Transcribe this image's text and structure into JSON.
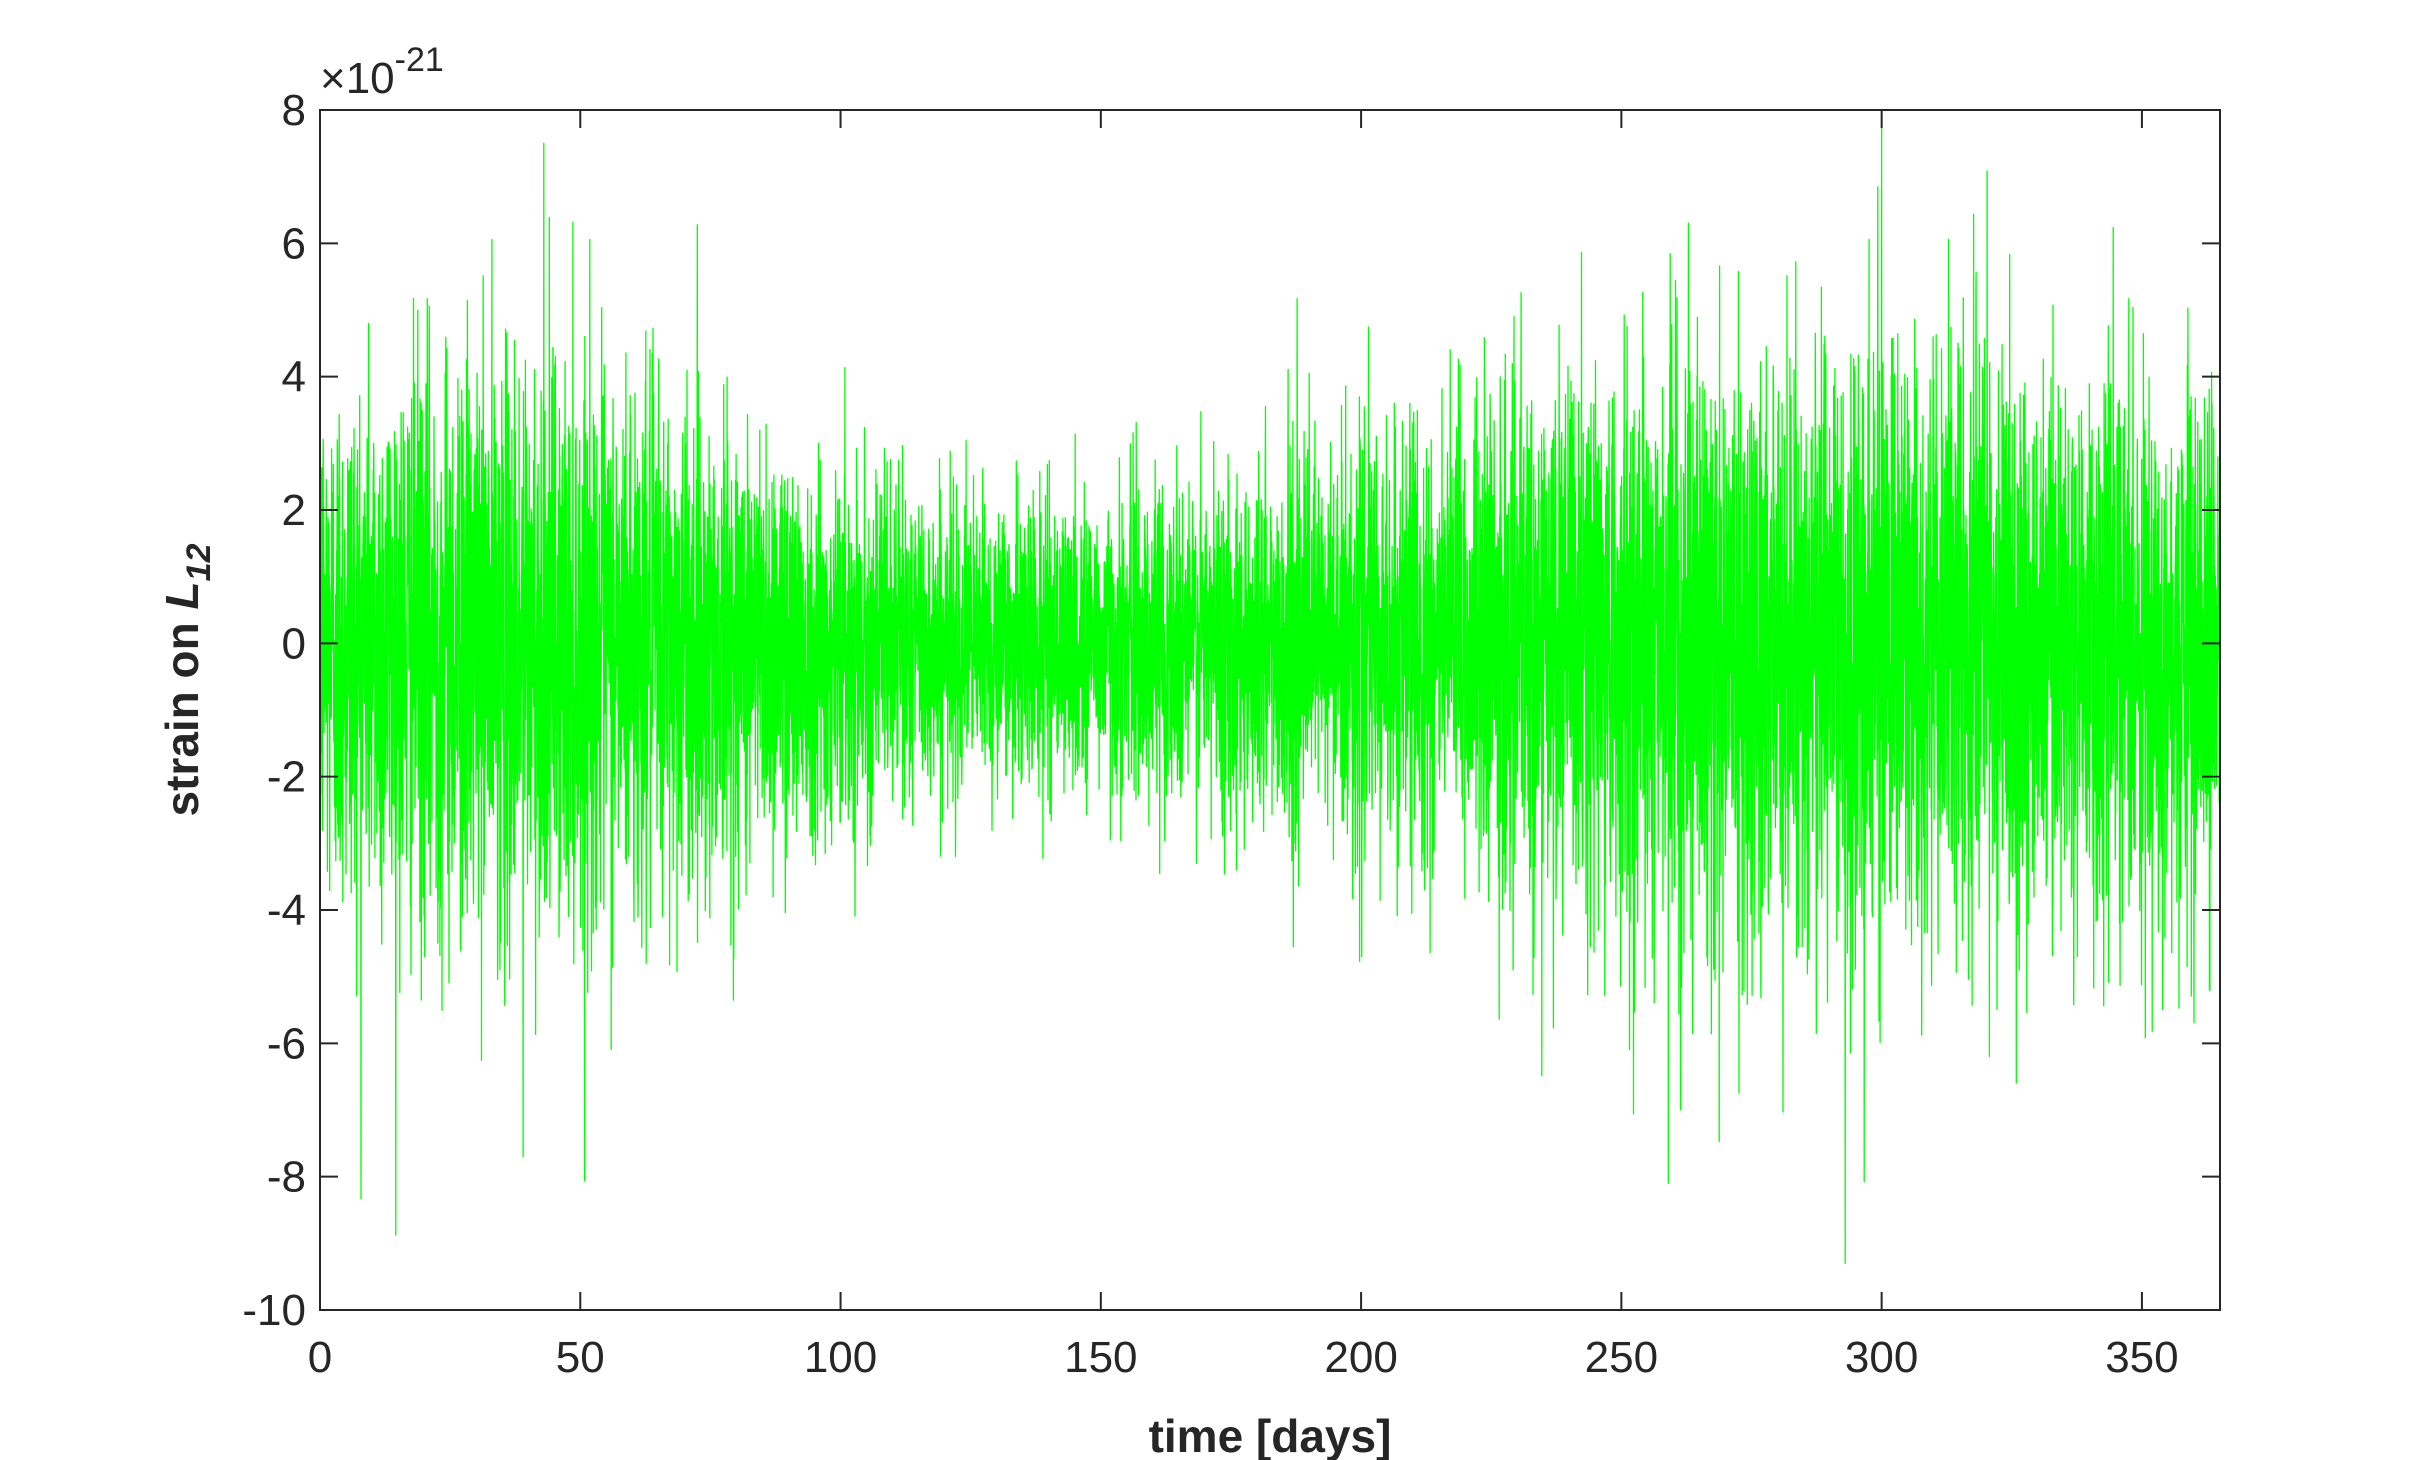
{
  "chart_data": {
    "type": "line",
    "title": "",
    "xlabel": "time [days]",
    "ylabel_main": "strain on ",
    "ylabel_symbol": "L",
    "ylabel_subscript": "12",
    "y_exponent_prefix": "×10",
    "y_exponent_power": "-21",
    "xlim": [
      0,
      365
    ],
    "ylim": [
      -10,
      8
    ],
    "x_ticks": [
      0,
      50,
      100,
      150,
      200,
      250,
      300,
      350
    ],
    "x_tick_labels": [
      "0",
      "50",
      "100",
      "150",
      "200",
      "250",
      "300",
      "350"
    ],
    "y_ticks": [
      -10,
      -8,
      -6,
      -4,
      -2,
      0,
      2,
      4,
      6,
      8
    ],
    "y_tick_labels": [
      "-10",
      "-8",
      "-6",
      "-4",
      "-2",
      "0",
      "2",
      "4",
      "6",
      "8"
    ],
    "grid": false,
    "series_color": "#00ff00",
    "envelope": {
      "x_days": [
        0,
        25,
        50,
        75,
        100,
        125,
        150,
        175,
        200,
        225,
        250,
        275,
        300,
        325,
        350,
        365
      ],
      "std_dev": [
        2.0,
        2.2,
        2.1,
        1.8,
        1.3,
        1.05,
        1.1,
        1.3,
        1.55,
        1.8,
        2.05,
        2.15,
        2.25,
        2.15,
        2.0,
        1.9
      ]
    },
    "extremes": [
      {
        "x": 300,
        "y": 8.0
      },
      {
        "x": 293,
        "y": -9.3
      },
      {
        "x": 43,
        "y": 7.5
      },
      {
        "x": 39,
        "y": -7.7
      },
      {
        "x": 259,
        "y": -8.1
      }
    ]
  }
}
